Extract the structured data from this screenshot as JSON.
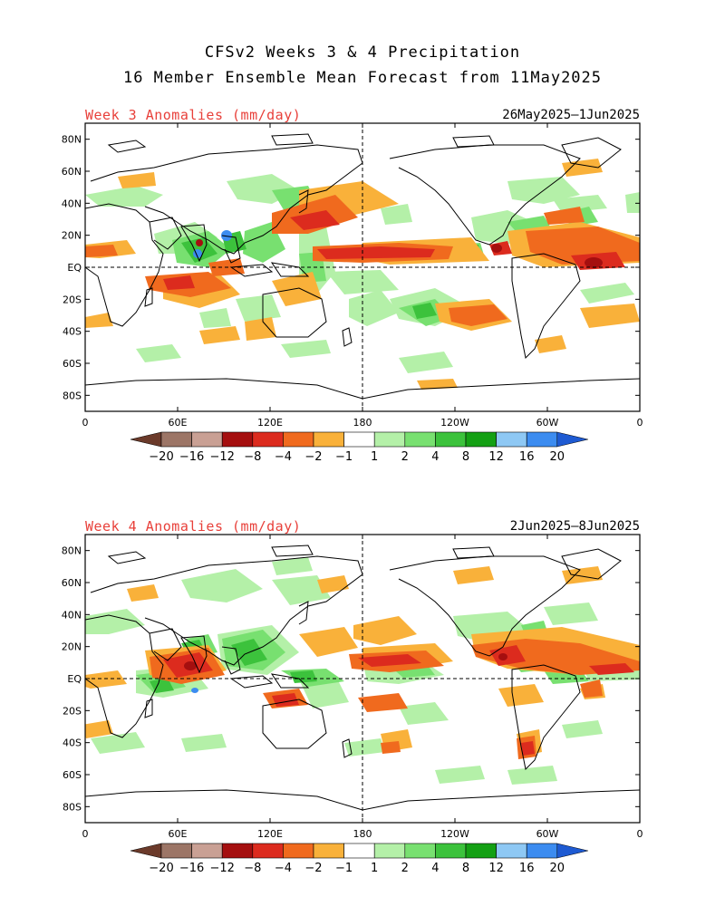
{
  "header": {
    "title_line1": "CFSv2 Weeks 3 & 4 Precipitation",
    "title_line2": "16 Member Ensemble Mean Forecast from 11May2025"
  },
  "panels": [
    {
      "title": "Week 3 Anomalies (mm/day)",
      "date_range": "26May2025–1Jun2025"
    },
    {
      "title": "Week 4 Anomalies (mm/day)",
      "date_range": "2Jun2025–8Jun2025"
    }
  ],
  "axes": {
    "lat_labels": [
      "80N",
      "60N",
      "40N",
      "20N",
      "EQ",
      "20S",
      "40S",
      "60S",
      "80S"
    ],
    "lat_values": [
      80,
      60,
      40,
      20,
      0,
      -20,
      -40,
      -60,
      -80
    ],
    "lon_labels": [
      "0",
      "60E",
      "120E",
      "180",
      "120W",
      "60W",
      "0"
    ],
    "lon_values": [
      0,
      60,
      120,
      180,
      240,
      300,
      360
    ]
  },
  "colorbar": {
    "labels": [
      "−20",
      "−16",
      "−12",
      "−8",
      "−4",
      "−2",
      "−1",
      "1",
      "2",
      "4",
      "8",
      "12",
      "16",
      "20"
    ],
    "colors": [
      "#6b3a2a",
      "#9c7566",
      "#c9a094",
      "#a50f0f",
      "#dc2b1e",
      "#f06a1e",
      "#f9b13a",
      "#ffffff",
      "#b4f0a8",
      "#78e070",
      "#3cc23c",
      "#14a014",
      "#8ec8f4",
      "#3c8cf0",
      "#1e5ad2"
    ]
  },
  "anomaly_colors": {
    "light_dry": "#f9b13a",
    "mid_dry": "#f06a1e",
    "strong_dry": "#dc2b1e",
    "extreme_dry": "#a50f0f",
    "light_wet": "#b4f0a8",
    "mid_wet": "#78e070",
    "strong_wet": "#3cc23c",
    "extreme_wet": "#14a014",
    "very_wet": "#3c8cf0"
  }
}
